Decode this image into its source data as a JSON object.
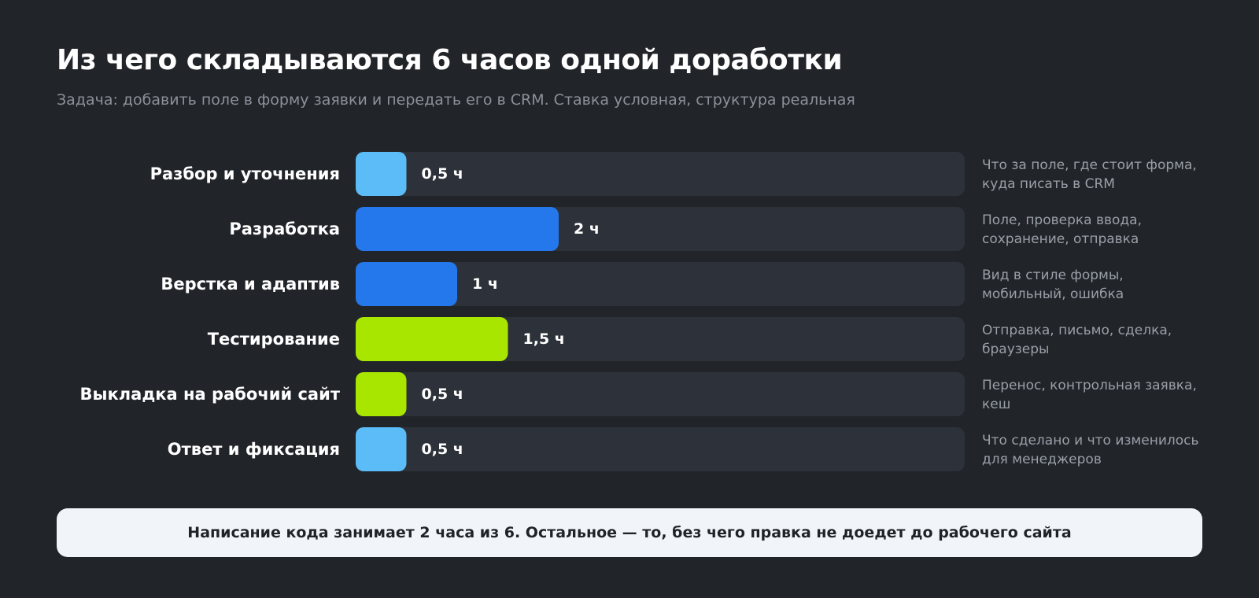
{
  "chart_data": {
    "type": "bar",
    "orientation": "horizontal",
    "title": "Из чего складываются 6 часов одной доработки",
    "subtitle": "Задача: добавить поле в форму заявки и передать его в CRM. Ставка условная, структура реальная",
    "unit": "ч",
    "xlim": [
      0,
      6
    ],
    "categories": [
      "Разбор и уточнения",
      "Разработка",
      "Верстка и адаптив",
      "Тестирование",
      "Выкладка на рабочий сайт",
      "Ответ и фиксация"
    ],
    "values": [
      0.5,
      2,
      1,
      1.5,
      0.5,
      0.5
    ],
    "value_labels": [
      "0,5 ч",
      "2 ч",
      "1 ч",
      "1,5 ч",
      "0,5 ч",
      "0,5 ч"
    ],
    "notes": [
      [
        "Что за поле, где стоит форма,",
        "куда писать в CRM"
      ],
      [
        "Поле, проверка ввода,",
        "сохранение, отправка"
      ],
      [
        "Вид в стиле формы,",
        "мобильный, ошибка"
      ],
      [
        "Отправка, письмо, сделка,",
        "браузеры"
      ],
      [
        "Перенос, контрольная заявка,",
        "кеш"
      ],
      [
        "Что сделано и что изменилось",
        "для менеджеров"
      ]
    ],
    "colors": [
      "#5bbcf7",
      "#2478ec",
      "#2478ec",
      "#a8e600",
      "#a8e600",
      "#5bbcf7"
    ],
    "track_color": "#2d3139",
    "grid": false,
    "legend": "none"
  },
  "callout": {
    "text": "Написание кода занимает 2 часа из 6. Остальное — то, без чего правка не доедет до рабочего сайта"
  }
}
